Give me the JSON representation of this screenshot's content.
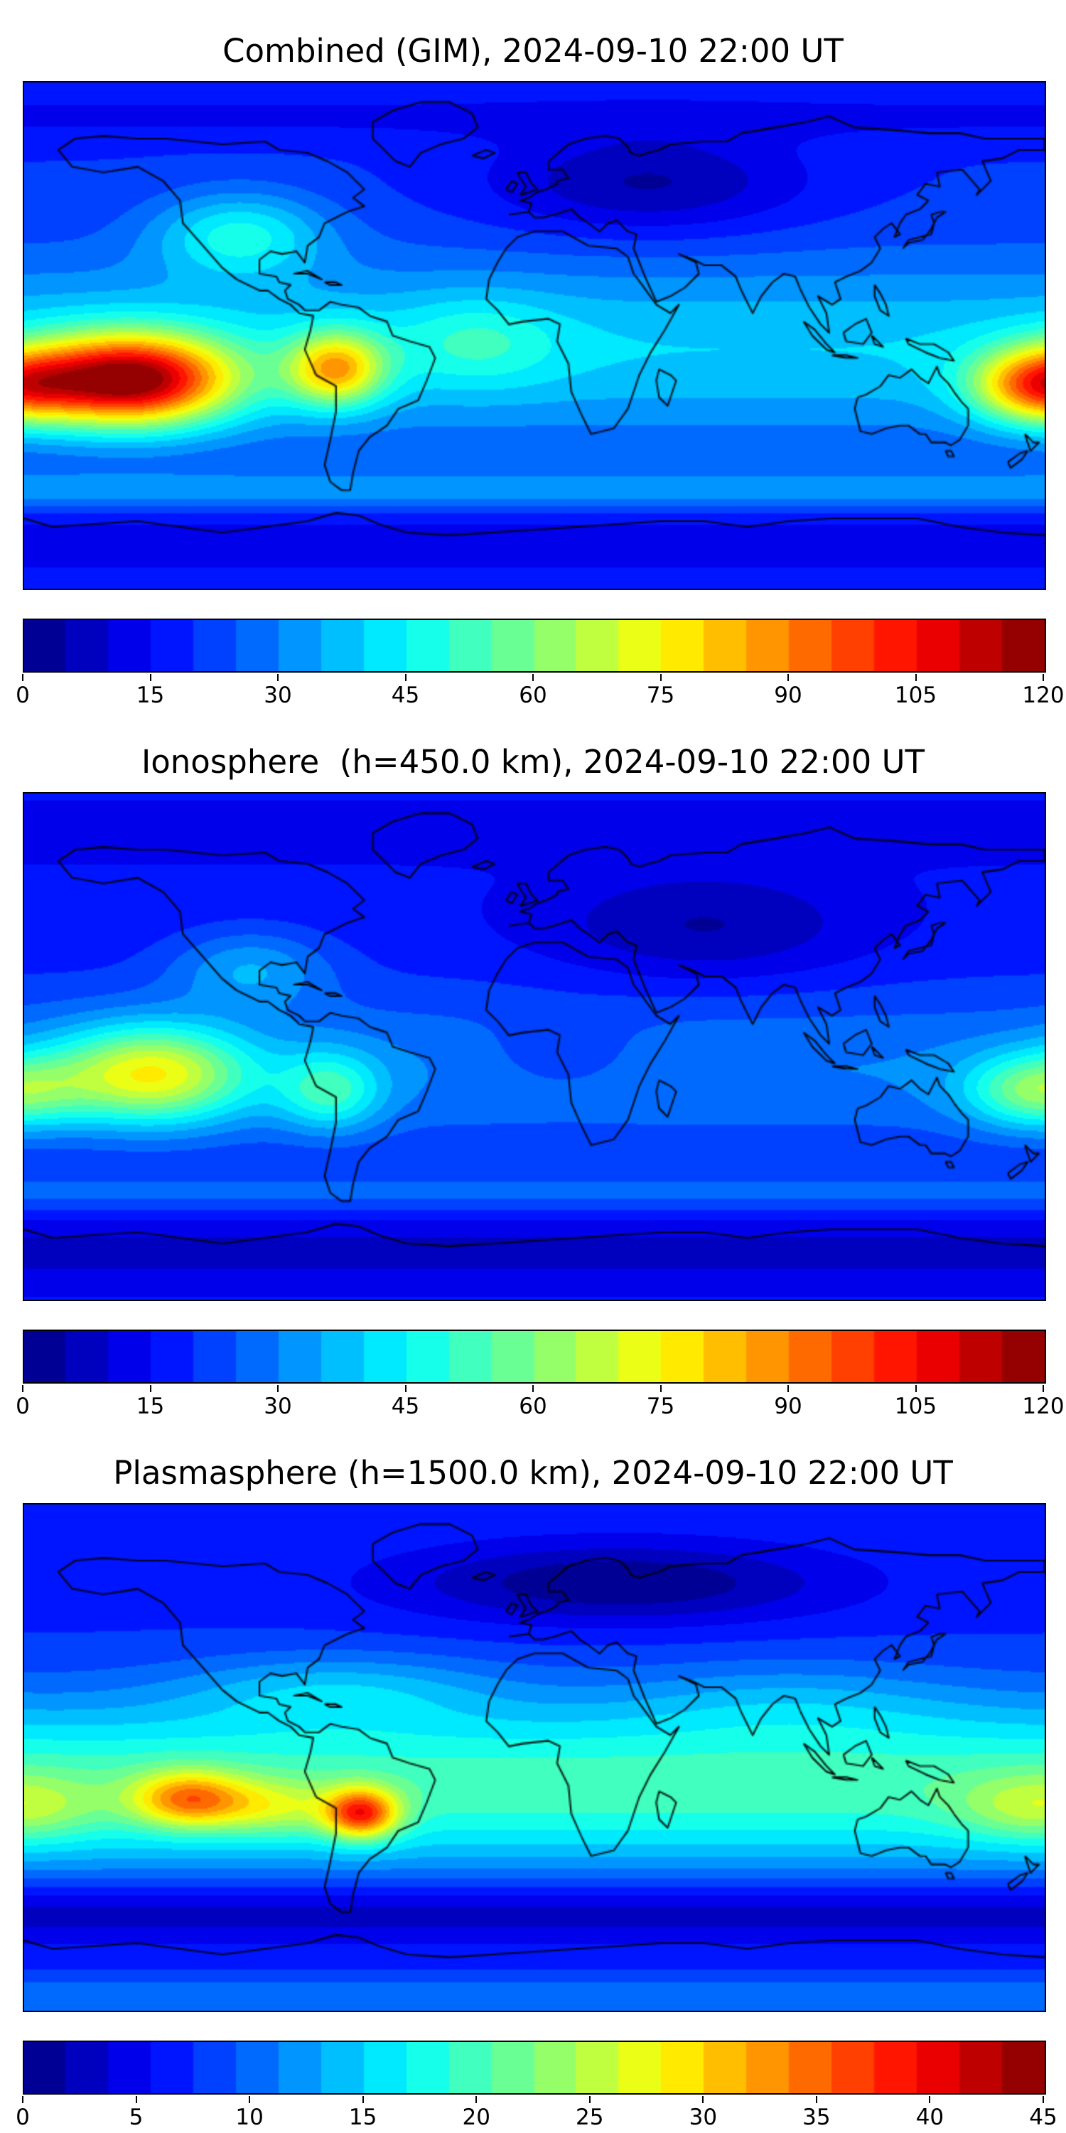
{
  "chart_data": [
    {
      "type": "heatmap",
      "title": "Combined (GIM), 2024-09-10 22:00 UT",
      "projection": "equirectangular",
      "lon_range": [
        -180,
        180
      ],
      "lat_range": [
        -90,
        90
      ],
      "colormap": "jet",
      "vmin": 0,
      "vmax": 120,
      "levels": 24,
      "colorbar_ticks": [
        0,
        15,
        30,
        45,
        60,
        75,
        90,
        105,
        120
      ],
      "legend_position": "bottom",
      "grid": false,
      "field": {
        "base": 20,
        "blobs": [
          {
            "lon": 0,
            "lat": -5,
            "amp": 20,
            "slon": 100000,
            "slat": 32
          },
          {
            "lon": -143,
            "lat": -16,
            "amp": 86,
            "slon": 36,
            "slat": 16
          },
          {
            "lon": -70,
            "lat": -12,
            "amp": 48,
            "slon": 17,
            "slat": 13
          },
          {
            "lon": 176,
            "lat": -18,
            "amp": 46,
            "slon": 22,
            "slat": 13
          },
          {
            "lon": 40,
            "lat": 54,
            "amp": -16,
            "slon": 55,
            "slat": 18
          },
          {
            "lon": 0,
            "lat": -55,
            "amp": 12,
            "slon": 100000,
            "slat": 7
          },
          {
            "lon": 0,
            "lat": -74,
            "amp": -9,
            "slon": 100000,
            "slat": 11
          },
          {
            "lon": -104,
            "lat": 36,
            "amp": 24,
            "slon": 30,
            "slat": 15
          },
          {
            "lon": -20,
            "lat": -2,
            "amp": 12,
            "slon": 28,
            "slat": 16
          },
          {
            "lon": 0,
            "lat": 78,
            "amp": -6,
            "slon": 100000,
            "slat": 9
          }
        ]
      }
    },
    {
      "type": "heatmap",
      "title": "Ionosphere  (h=450.0 km), 2024-09-10 22:00 UT",
      "projection": "equirectangular",
      "lon_range": [
        -180,
        180
      ],
      "lat_range": [
        -90,
        90
      ],
      "colormap": "jet",
      "vmin": 0,
      "vmax": 120,
      "levels": 24,
      "colorbar_ticks": [
        0,
        15,
        30,
        45,
        60,
        75,
        90,
        105,
        120
      ],
      "legend_position": "bottom",
      "grid": false,
      "field": {
        "base": 16,
        "blobs": [
          {
            "lon": 0,
            "lat": -8,
            "amp": 14,
            "slon": 100000,
            "slat": 30
          },
          {
            "lon": -135,
            "lat": -10,
            "amp": 46,
            "slon": 34,
            "slat": 17
          },
          {
            "lon": -72,
            "lat": -16,
            "amp": 24,
            "slon": 18,
            "slat": 14
          },
          {
            "lon": 176,
            "lat": -16,
            "amp": 30,
            "slon": 24,
            "slat": 13
          },
          {
            "lon": 60,
            "lat": 42,
            "amp": -12,
            "slon": 55,
            "slat": 20
          },
          {
            "lon": 0,
            "lat": -52,
            "amp": 9,
            "slon": 100000,
            "slat": 7
          },
          {
            "lon": 0,
            "lat": -73,
            "amp": -8,
            "slon": 100000,
            "slat": 11
          },
          {
            "lon": -100,
            "lat": 28,
            "amp": 16,
            "slon": 28,
            "slat": 14
          },
          {
            "lon": 10,
            "lat": -3,
            "amp": -7,
            "slon": 30,
            "slat": 14
          },
          {
            "lon": 0,
            "lat": 76,
            "amp": -5,
            "slon": 100000,
            "slat": 9
          }
        ]
      }
    },
    {
      "type": "heatmap",
      "title": "Plasmasphere (h=1500.0 km), 2024-09-10 22:00 UT",
      "projection": "equirectangular",
      "lon_range": [
        -180,
        180
      ],
      "lat_range": [
        -90,
        90
      ],
      "colormap": "jet",
      "vmin": 0,
      "vmax": 45,
      "levels": 24,
      "colorbar_ticks": [
        0,
        5,
        10,
        15,
        20,
        25,
        30,
        35,
        40,
        45
      ],
      "legend_position": "bottom",
      "grid": false,
      "field": {
        "base": 7,
        "blobs": [
          {
            "lon": 0,
            "lat": -10,
            "amp": 13,
            "slon": 100000,
            "slat": 30
          },
          {
            "lon": -122,
            "lat": -15,
            "amp": 15,
            "slon": 20,
            "slat": 10
          },
          {
            "lon": -61,
            "lat": -20,
            "amp": 20,
            "slon": 13,
            "slat": 9
          },
          {
            "lon": -92,
            "lat": -18,
            "amp": 7,
            "slon": 22,
            "slat": 10
          },
          {
            "lon": 178,
            "lat": -18,
            "amp": 7,
            "slon": 28,
            "slat": 12
          },
          {
            "lon": 30,
            "lat": 62,
            "amp": -7,
            "slon": 75,
            "slat": 14
          },
          {
            "lon": 0,
            "lat": -55,
            "amp": -5,
            "slon": 100000,
            "slat": 11
          },
          {
            "lon": 0,
            "lat": -85,
            "amp": 4,
            "slon": 100000,
            "slat": 7
          },
          {
            "lon": -70,
            "lat": 24,
            "amp": 5,
            "slon": 55,
            "slat": 13
          },
          {
            "lon": 90,
            "lat": 20,
            "amp": 3,
            "slon": 60,
            "slat": 15
          }
        ]
      }
    }
  ]
}
